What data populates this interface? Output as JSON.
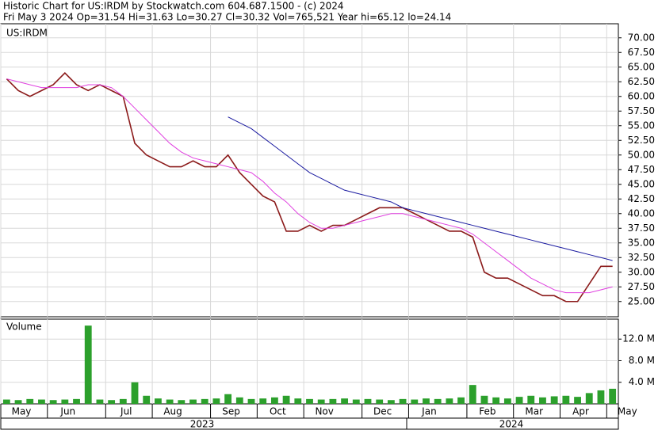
{
  "chart_data": [
    {
      "type": "line",
      "title": "Historic Chart for US:IRDM by Stockwatch.com 604.687.1500 - (c) 2024",
      "subtitle": "Fri May  3 2024  Op=31.54  Hi=31.63  Lo=30.27  Cl=30.32  Vol=765,521  Year hi=65.12  lo=24.14",
      "annotation": "US:IRDM",
      "ylim": [
        22.4,
        72.4
      ],
      "yticks": [
        {
          "value": 25,
          "label": "25.00"
        },
        {
          "value": 27.5,
          "label": "27.50"
        },
        {
          "value": 30,
          "label": "30.00"
        },
        {
          "value": 32.5,
          "label": "32.50"
        },
        {
          "value": 35,
          "label": "35.00"
        },
        {
          "value": 37.5,
          "label": "37.50"
        },
        {
          "value": 40,
          "label": "40.00"
        },
        {
          "value": 42.5,
          "label": "42.50"
        },
        {
          "value": 45,
          "label": "45.00"
        },
        {
          "value": 47.5,
          "label": "47.50"
        },
        {
          "value": 50,
          "label": "50.00"
        },
        {
          "value": 52.5,
          "label": "52.50"
        },
        {
          "value": 55,
          "label": "55.00"
        },
        {
          "value": 57.5,
          "label": "57.50"
        },
        {
          "value": 60,
          "label": "60.00"
        },
        {
          "value": 62.5,
          "label": "62.50"
        },
        {
          "value": 65,
          "label": "65.00"
        },
        {
          "value": 67.5,
          "label": "67.50"
        },
        {
          "value": 70,
          "label": "70.00"
        }
      ],
      "grid": true,
      "series": [
        {
          "color": "#8b1a1a",
          "values": [
            63,
            61,
            60,
            61,
            62,
            64,
            62,
            61,
            62,
            61,
            60,
            52,
            50,
            49,
            48,
            48,
            49,
            48,
            48,
            50,
            47,
            45,
            43,
            42,
            37,
            37,
            38,
            37,
            38,
            38,
            39,
            40,
            41,
            41,
            41,
            40,
            39,
            38,
            37,
            37,
            36,
            30,
            29,
            29,
            28,
            27,
            26,
            26,
            25,
            25,
            28,
            31,
            31
          ]
        },
        {
          "color": "#e040e0",
          "values": [
            63,
            62.5,
            62,
            61.5,
            61.5,
            61.5,
            61.5,
            62,
            62,
            61.5,
            60,
            58,
            56,
            54,
            52,
            50.5,
            49.5,
            49,
            48.5,
            48,
            47.5,
            47,
            45.5,
            43.5,
            42,
            40,
            38.5,
            37.5,
            37.5,
            38,
            38.5,
            39,
            39.5,
            40,
            40,
            39.5,
            39,
            38.5,
            38,
            37.5,
            36.5,
            35,
            33.5,
            32,
            30.5,
            29,
            28,
            27,
            26.5,
            26.5,
            26.5,
            27,
            27.5
          ]
        },
        {
          "color": "#1a1aa0",
          "values": [
            null,
            null,
            null,
            null,
            null,
            null,
            null,
            null,
            null,
            null,
            null,
            null,
            null,
            null,
            null,
            null,
            null,
            null,
            null,
            56.5,
            55.5,
            54.5,
            53,
            51.5,
            50,
            48.5,
            47,
            46,
            45,
            44,
            43.5,
            43,
            42.5,
            42,
            41,
            40.5,
            40,
            39.5,
            39,
            38.5,
            38,
            37.5,
            37,
            36.5,
            36,
            35.5,
            35,
            34.5,
            34,
            33.5,
            33,
            32.5,
            32
          ]
        }
      ]
    },
    {
      "type": "bar",
      "title": "Volume",
      "categories": [
        "May",
        null,
        null,
        null,
        "Jun",
        null,
        null,
        null,
        null,
        "Jul",
        null,
        null,
        null,
        "Aug",
        null,
        null,
        null,
        null,
        "Sep",
        null,
        null,
        null,
        "Oct",
        null,
        null,
        null,
        "Nov",
        null,
        null,
        null,
        null,
        "Dec",
        null,
        null,
        null,
        "Jan",
        null,
        null,
        null,
        null,
        "Feb",
        null,
        null,
        null,
        "Mar",
        null,
        null,
        null,
        "Apr",
        null,
        null,
        null,
        "May"
      ],
      "year_labels": [
        "2023",
        "2024"
      ],
      "ylim": [
        0,
        15.7
      ],
      "yticks": [
        {
          "value": 4,
          "label": "4.0 M"
        },
        {
          "value": 8,
          "label": "8.0 M"
        },
        {
          "value": 12,
          "label": "12.0 M"
        }
      ],
      "grid": true,
      "color": "#2ca02c",
      "values": [
        0.8,
        0.7,
        0.9,
        0.8,
        0.7,
        0.8,
        0.9,
        14.5,
        0.8,
        0.7,
        0.9,
        4.0,
        1.5,
        1.0,
        0.8,
        0.7,
        0.8,
        0.9,
        1.0,
        1.8,
        1.2,
        0.9,
        1.0,
        1.2,
        1.5,
        1.0,
        0.9,
        0.8,
        0.9,
        1.0,
        0.8,
        0.9,
        0.8,
        0.7,
        0.9,
        0.8,
        1.0,
        0.9,
        1.0,
        1.2,
        3.5,
        1.5,
        1.2,
        1.0,
        1.3,
        1.5,
        1.2,
        1.4,
        1.5,
        1.3,
        2.0,
        2.5,
        2.8
      ]
    }
  ]
}
